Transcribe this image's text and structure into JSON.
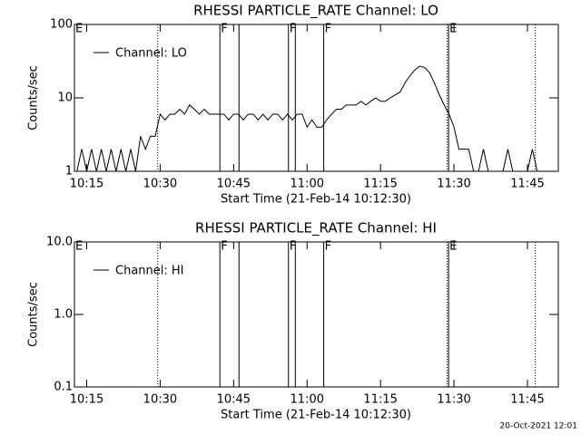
{
  "chart_data": [
    {
      "type": "line",
      "title": "RHESSI PARTICLE_RATE Channel: LO",
      "xlabel": "Start Time (21-Feb-14 10:12:30)",
      "ylabel": "Counts/sec",
      "log_scale": true,
      "ylim": [
        1,
        100
      ],
      "yticks": [
        1,
        10,
        100
      ],
      "xlim": [
        612.5,
        711.3
      ],
      "xticks": [
        {
          "value": 615,
          "label": "10:15"
        },
        {
          "value": 630,
          "label": "10:30"
        },
        {
          "value": 645,
          "label": "10:45"
        },
        {
          "value": 660,
          "label": "11:00"
        },
        {
          "value": 675,
          "label": "11:15"
        },
        {
          "value": 690,
          "label": "11:30"
        },
        {
          "value": 705,
          "label": "11:45"
        }
      ],
      "x": [
        613,
        614,
        615,
        616,
        617,
        618,
        619,
        620,
        621,
        622,
        623,
        624,
        625,
        626,
        627,
        628,
        629,
        630,
        631,
        632,
        633,
        634,
        635,
        636,
        637,
        638,
        639,
        640,
        641,
        642,
        643,
        644,
        645,
        646,
        647,
        648,
        649,
        650,
        651,
        652,
        653,
        654,
        655,
        656,
        657,
        658,
        659,
        660,
        661,
        662,
        663,
        664,
        665,
        666,
        667,
        668,
        669,
        670,
        671,
        672,
        673,
        674,
        675,
        676,
        677,
        678,
        679,
        680,
        681,
        682,
        683,
        684,
        685,
        686,
        687,
        688,
        689,
        690,
        691,
        692,
        693,
        694,
        695,
        696,
        697,
        698,
        699,
        700,
        701,
        702,
        703,
        704,
        705,
        706,
        707
      ],
      "series": [
        {
          "name": "Channel: LO",
          "color": "#000000",
          "values": [
            1,
            2,
            1,
            2,
            1,
            2,
            1,
            2,
            1,
            2,
            1,
            2,
            1,
            3,
            2,
            3,
            3,
            6,
            5,
            6,
            6,
            7,
            6,
            8,
            7,
            6,
            7,
            6,
            6,
            6,
            6,
            5,
            6,
            6,
            5,
            6,
            6,
            5,
            6,
            5,
            6,
            6,
            5,
            6,
            5,
            6,
            6,
            4,
            5,
            4,
            4,
            5,
            6,
            7,
            7,
            8,
            8,
            8,
            9,
            8,
            9,
            10,
            9,
            9,
            10,
            11,
            12,
            16,
            20,
            24,
            27,
            26,
            22,
            16,
            11,
            8,
            6,
            4,
            2,
            2,
            2,
            1,
            1,
            2,
            1,
            1,
            1,
            1,
            2,
            1,
            1,
            1,
            1,
            2,
            1
          ]
        }
      ],
      "markers": [
        {
          "x": 612.5,
          "label": "E",
          "style": "solid"
        },
        {
          "x": 629.5,
          "style": "dotted"
        },
        {
          "x": 642.2,
          "label": "F",
          "style": "solid"
        },
        {
          "x": 646.1,
          "style": "solid"
        },
        {
          "x": 656.2,
          "label": "F",
          "style": "solid"
        },
        {
          "x": 657.6,
          "style": "solid"
        },
        {
          "x": 663.4,
          "label": "F",
          "style": "solid"
        },
        {
          "x": 688.6,
          "style": "dotted"
        },
        {
          "x": 688.9,
          "label": "E",
          "style": "solid"
        },
        {
          "x": 706.6,
          "style": "dotted"
        }
      ]
    },
    {
      "type": "line",
      "title": "RHESSI PARTICLE_RATE Channel: HI",
      "xlabel": "Start Time (21-Feb-14 10:12:30)",
      "ylabel": "Counts/sec",
      "log_scale": true,
      "ylim": [
        0.1,
        10
      ],
      "yticks": [
        {
          "value": 0.1,
          "label": "0.1"
        },
        {
          "value": 1,
          "label": "1.0"
        },
        {
          "value": 10,
          "label": "10.0"
        }
      ],
      "xlim": [
        612.5,
        711.3
      ],
      "xticks": [
        {
          "value": 615,
          "label": "10:15"
        },
        {
          "value": 630,
          "label": "10:30"
        },
        {
          "value": 645,
          "label": "10:45"
        },
        {
          "value": 660,
          "label": "11:00"
        },
        {
          "value": 675,
          "label": "11:15"
        },
        {
          "value": 690,
          "label": "11:30"
        },
        {
          "value": 705,
          "label": "11:45"
        }
      ],
      "x": [],
      "series": [
        {
          "name": "Channel: HI",
          "color": "#000000",
          "values": []
        }
      ],
      "markers": [
        {
          "x": 612.5,
          "label": "E",
          "style": "solid"
        },
        {
          "x": 629.5,
          "style": "dotted"
        },
        {
          "x": 642.2,
          "label": "F",
          "style": "solid"
        },
        {
          "x": 646.1,
          "style": "solid"
        },
        {
          "x": 656.2,
          "label": "F",
          "style": "solid"
        },
        {
          "x": 657.6,
          "style": "solid"
        },
        {
          "x": 663.4,
          "label": "F",
          "style": "solid"
        },
        {
          "x": 688.6,
          "style": "dotted"
        },
        {
          "x": 688.9,
          "label": "E",
          "style": "solid"
        },
        {
          "x": 706.6,
          "style": "dotted"
        }
      ]
    }
  ],
  "footer": "20-Oct-2021 12:01"
}
